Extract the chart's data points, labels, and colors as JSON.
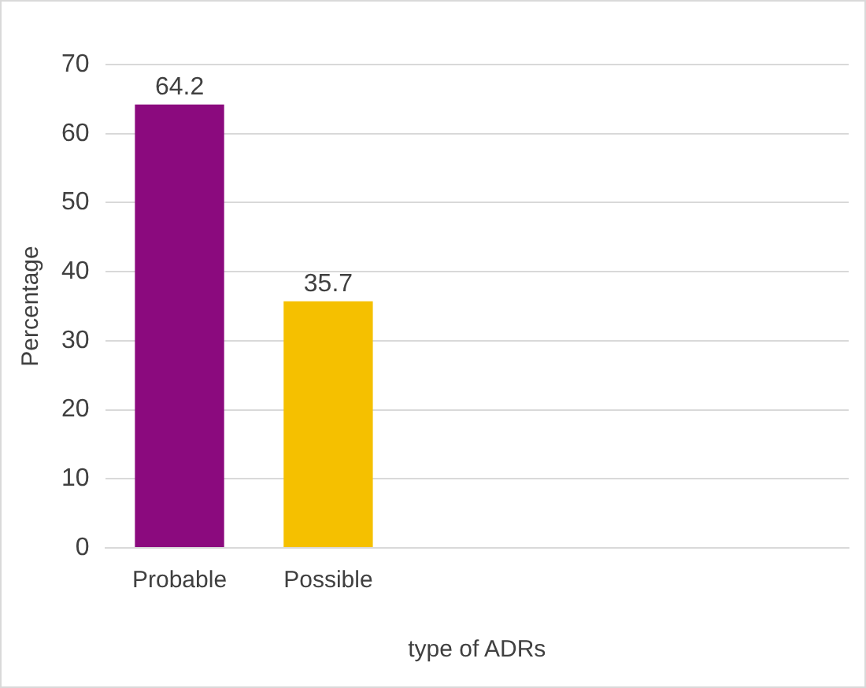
{
  "chart_data": {
    "type": "bar",
    "xlabel": "type of ADRs",
    "ylabel": "Percentage",
    "categories": [
      "Probable",
      "Possible",
      null,
      null,
      null
    ],
    "values": [
      64.2,
      35.7,
      null,
      null,
      null
    ],
    "colors": [
      "#8b0a7e",
      "#f5c000",
      null,
      null,
      null
    ],
    "ylim": [
      0,
      70
    ],
    "yticks": [
      0,
      10,
      20,
      30,
      40,
      50,
      60,
      70
    ],
    "grid": "y",
    "data_labels": true
  }
}
